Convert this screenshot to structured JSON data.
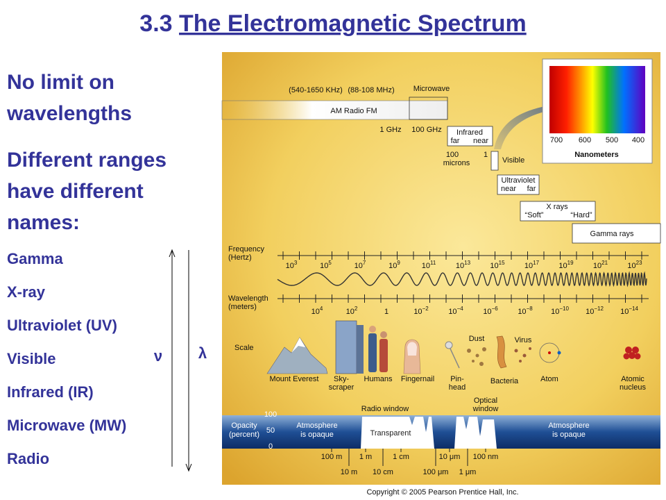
{
  "header": {
    "number": "3.3",
    "title": "The Electromagnetic Spectrum"
  },
  "bullets": [
    [
      "No limit on",
      "wavelengths"
    ],
    [
      "Different ranges",
      "have different",
      "names:"
    ]
  ],
  "names": [
    "Gamma",
    "X-ray",
    "Ultraviolet (UV)",
    "Visible",
    "Infrared (IR)",
    "Microwave (MW)",
    "Radio"
  ],
  "arrows": {
    "frequency": "ν",
    "wavelength": "λ"
  },
  "figure": {
    "bands": {
      "am_range": "(540-1650 KHz)",
      "fm_range": "(88-108 MHz)",
      "microwave": "Microwave",
      "radio": "AM Radio FM",
      "ghz1": "1 GHz",
      "ghz100": "100 GHz",
      "infrared": "Infrared",
      "ir_far": "far",
      "ir_near": "near",
      "microns100": "100",
      "microns": "microns",
      "micron1": "1",
      "visible": "Visible",
      "ultraviolet": "Ultraviolet",
      "uv_near": "near",
      "uv_far": "far",
      "xrays": "X rays",
      "soft": "“Soft”",
      "hard": "“Hard”",
      "gamma": "Gamma rays"
    },
    "spectrum": {
      "ticks": [
        "700",
        "600",
        "500",
        "400"
      ],
      "unit": "Nanometers"
    },
    "frequency": {
      "label": [
        "Frequency",
        "(Hertz)"
      ],
      "ticks": [
        {
          "base": "10",
          "exp": "3"
        },
        {
          "base": "10",
          "exp": "5"
        },
        {
          "base": "10",
          "exp": "7"
        },
        {
          "base": "10",
          "exp": "9"
        },
        {
          "base": "10",
          "exp": "11"
        },
        {
          "base": "10",
          "exp": "13"
        },
        {
          "base": "10",
          "exp": "15"
        },
        {
          "base": "10",
          "exp": "17"
        },
        {
          "base": "10",
          "exp": "19"
        },
        {
          "base": "10",
          "exp": "21"
        },
        {
          "base": "10",
          "exp": "23"
        }
      ]
    },
    "wavelength": {
      "label": [
        "Wavelength",
        "(meters)"
      ],
      "ticks": [
        {
          "base": "10",
          "exp": "4"
        },
        {
          "base": "10",
          "exp": "2"
        },
        {
          "base": "1"
        },
        {
          "base": "10",
          "exp": "−2"
        },
        {
          "base": "10",
          "exp": "−4"
        },
        {
          "base": "10",
          "exp": "−6"
        },
        {
          "base": "10",
          "exp": "−8"
        },
        {
          "base": "10",
          "exp": "−10"
        },
        {
          "base": "10",
          "exp": "−12"
        },
        {
          "base": "10",
          "exp": "−14"
        }
      ]
    },
    "scale": {
      "label": "Scale",
      "objects": [
        [
          "Mount Everest"
        ],
        [
          "Sky-",
          "scraper"
        ],
        [
          "Humans"
        ],
        [
          "Fingernail"
        ],
        [
          "Pin-",
          "head"
        ],
        [
          "Dust"
        ],
        [
          "Bacteria"
        ],
        [
          "Virus"
        ],
        [
          "Atom"
        ],
        [
          "Atomic",
          "nucleus"
        ]
      ]
    },
    "atmosphere": {
      "radio_window": "Radio window",
      "optical_window": [
        "Optical",
        "window"
      ],
      "opacity_label": [
        "Opacity",
        "(percent)"
      ],
      "opacity_ticks": [
        "100",
        "50",
        "0"
      ],
      "opaque_left": [
        "Atmosphere",
        "is opaque"
      ],
      "transparent": "Transparent",
      "opaque_right": [
        "Atmosphere",
        "is opaque"
      ],
      "wavelengths_top": [
        "100 m",
        "1 m",
        "1 cm",
        "10 μm",
        "100 nm"
      ],
      "wavelengths_bottom": [
        "10 m",
        "10 cm",
        "100 μm",
        "1 μm"
      ]
    },
    "copyright": "Copyright © 2005 Pearson Prentice Hall, Inc."
  }
}
